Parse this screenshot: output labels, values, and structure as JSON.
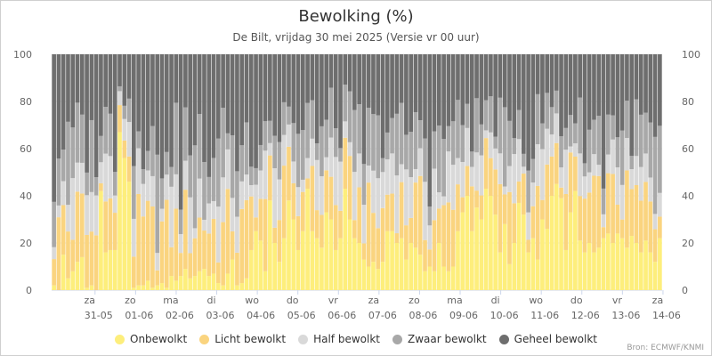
{
  "title": "Bewolking (%)",
  "subtitle": "De Bilt, vrijdag 30 mei 2025 (Versie vr 00 uur)",
  "credit": "Bron: ECMWF/KNMI",
  "legend": [
    {
      "name": "Onbewolkt",
      "color": "#fdee7c"
    },
    {
      "name": "Licht bewolkt",
      "color": "#fad47f"
    },
    {
      "name": "Half bewolkt",
      "color": "#d9d9d9"
    },
    {
      "name": "Zwaar bewolkt",
      "color": "#a8a8a8"
    },
    {
      "name": "Geheel bewolkt",
      "color": "#6e6e6e"
    }
  ],
  "chart_data": {
    "type": "bar",
    "stacked": true,
    "title": "Bewolking (%)",
    "subtitle": "De Bilt, vrijdag 30 mei 2025 (Versie vr 00 uur)",
    "ylim": [
      0,
      100
    ],
    "yticks": [
      0,
      20,
      40,
      60,
      80,
      100
    ],
    "grid": true,
    "legend_position": "bottom",
    "day_labels": [
      {
        "day": "za",
        "date": "31-05"
      },
      {
        "day": "zo",
        "date": "01-06"
      },
      {
        "day": "ma",
        "date": "02-06"
      },
      {
        "day": "di",
        "date": "03-06"
      },
      {
        "day": "wo",
        "date": "04-06"
      },
      {
        "day": "do",
        "date": "05-06"
      },
      {
        "day": "vr",
        "date": "06-06"
      },
      {
        "day": "za",
        "date": "07-06"
      },
      {
        "day": "zo",
        "date": "08-06"
      },
      {
        "day": "ma",
        "date": "09-06"
      },
      {
        "day": "di",
        "date": "10-06"
      },
      {
        "day": "wo",
        "date": "11-06"
      },
      {
        "day": "do",
        "date": "12-06"
      },
      {
        "day": "vr",
        "date": "13-06"
      },
      {
        "day": "za",
        "date": "14-06"
      }
    ],
    "series": [
      {
        "name": "Onbewolkt",
        "color": "#fdee7c",
        "values": [
          2,
          0,
          15,
          5,
          8,
          12,
          14,
          1,
          2,
          0,
          42,
          16,
          17,
          17,
          67,
          56,
          46,
          1,
          2,
          2,
          4,
          1,
          2,
          3,
          1,
          6,
          4,
          6,
          9,
          5,
          6,
          8,
          9,
          6,
          7,
          3,
          2,
          7,
          13,
          2,
          3,
          5,
          17,
          25,
          21,
          8,
          38,
          20,
          12,
          22,
          38,
          30,
          17,
          25,
          43,
          25,
          22,
          18,
          33,
          30,
          17,
          22,
          43,
          30,
          22,
          20,
          13,
          10,
          12,
          9,
          12,
          25,
          25,
          20,
          22,
          13,
          20,
          18,
          15,
          8,
          10,
          8,
          20,
          10,
          8,
          10,
          25,
          33,
          40,
          25,
          35,
          30,
          43,
          40,
          32,
          16,
          28,
          11,
          20,
          37,
          32,
          16,
          22,
          13,
          30,
          26,
          40,
          45,
          39,
          17,
          33,
          42,
          21,
          16,
          20,
          16,
          18,
          22,
          24,
          20,
          24,
          22,
          18,
          23,
          20,
          16,
          21,
          16,
          12,
          22
        ],
        "spans": [
          [
            0,
            7
          ],
          [
            8,
            9
          ],
          [
            10,
            13
          ],
          [
            14,
            15
          ],
          [
            18,
            19
          ],
          [
            20,
            21
          ],
          [
            24,
            27
          ],
          [
            28,
            29
          ],
          [
            30,
            33
          ],
          [
            34,
            35
          ],
          [
            36,
            37
          ],
          [
            38,
            43
          ],
          [
            44,
            47
          ],
          [
            48,
            49
          ],
          [
            50,
            51
          ],
          [
            52,
            55
          ],
          [
            56,
            57
          ],
          [
            58,
            59
          ],
          [
            60,
            61
          ],
          [
            62,
            63
          ],
          [
            64,
            65
          ],
          [
            66,
            67
          ],
          [
            68,
            69
          ],
          [
            70,
            71
          ],
          [
            72,
            73
          ],
          [
            74,
            75
          ],
          [
            76,
            77
          ],
          [
            78,
            79
          ],
          [
            80,
            81
          ],
          [
            82,
            83
          ],
          [
            84,
            85
          ],
          [
            86,
            87
          ],
          [
            88,
            89
          ],
          [
            90,
            91
          ],
          [
            92,
            93
          ],
          [
            94,
            95
          ],
          [
            96,
            97
          ],
          [
            98,
            99
          ],
          [
            100,
            101
          ],
          [
            102,
            103
          ],
          [
            104,
            105
          ],
          [
            106,
            107
          ],
          [
            108,
            109
          ],
          [
            110,
            111
          ],
          [
            112,
            113
          ],
          [
            114,
            115
          ],
          [
            116,
            117
          ],
          [
            118,
            119
          ],
          [
            120,
            121
          ],
          [
            122,
            123
          ],
          [
            124,
            125
          ],
          [
            126,
            127
          ],
          [
            128,
            129
          ]
        ]
      }
    ]
  }
}
